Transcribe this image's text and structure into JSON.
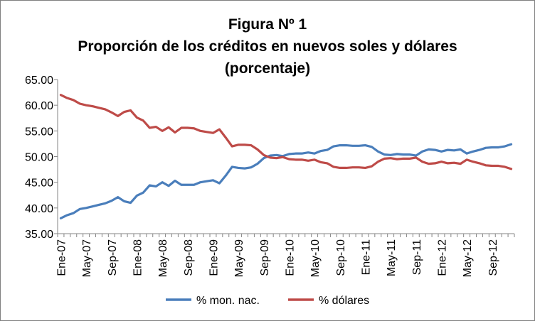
{
  "chart_data": {
    "type": "line",
    "title_lines": [
      "Figura Nº 1",
      "Proporción de los créditos en nuevos soles y dólares",
      "(porcentaje)"
    ],
    "xlabel": "",
    "ylabel": "",
    "ylim": [
      35,
      65
    ],
    "yticks": [
      "35.00",
      "40.00",
      "45.00",
      "50.00",
      "55.00",
      "60.00",
      "65.00"
    ],
    "grid": false,
    "legend_position": "bottom",
    "x_tick_labels": [
      "Ene-07",
      "May-07",
      "Sep-07",
      "Ene-08",
      "May-08",
      "Sep-08",
      "Ene-09",
      "May-09",
      "Sep-09",
      "Ene-10",
      "May-10",
      "Sep-10",
      "Ene-11",
      "May-11",
      "Sep-11",
      "Ene-12",
      "May-12",
      "Sep-12"
    ],
    "x_tick_every": 4,
    "series": [
      {
        "name": "% mon. nac.",
        "color": "#4a7ebb",
        "values": [
          38.0,
          38.6,
          39.0,
          39.8,
          40.0,
          40.3,
          40.6,
          40.9,
          41.4,
          42.1,
          41.3,
          41.0,
          42.4,
          43.0,
          44.4,
          44.2,
          45.0,
          44.3,
          45.3,
          44.5,
          44.5,
          44.5,
          45.0,
          45.2,
          45.4,
          44.8,
          46.3,
          48.0,
          47.8,
          47.7,
          47.9,
          48.6,
          49.7,
          50.2,
          50.3,
          50.1,
          50.5,
          50.6,
          50.6,
          50.8,
          50.6,
          51.1,
          51.3,
          52.0,
          52.2,
          52.2,
          52.1,
          52.1,
          52.2,
          51.9,
          51.0,
          50.4,
          50.3,
          50.5,
          50.4,
          50.4,
          50.2,
          51.0,
          51.4,
          51.3,
          51.0,
          51.3,
          51.2,
          51.4,
          50.6,
          51.0,
          51.3,
          51.7,
          51.8,
          51.8,
          52.0,
          52.4
        ]
      },
      {
        "name": "% dólares",
        "color": "#be4b48",
        "values": [
          62.0,
          61.4,
          61.0,
          60.3,
          60.0,
          59.8,
          59.5,
          59.2,
          58.6,
          57.9,
          58.7,
          59.0,
          57.6,
          57.0,
          55.6,
          55.8,
          55.0,
          55.7,
          54.7,
          55.6,
          55.6,
          55.5,
          55.0,
          54.8,
          54.6,
          55.3,
          53.7,
          52.0,
          52.3,
          52.3,
          52.2,
          51.4,
          50.3,
          49.8,
          49.7,
          49.9,
          49.5,
          49.4,
          49.4,
          49.2,
          49.4,
          48.9,
          48.7,
          48.0,
          47.8,
          47.8,
          47.9,
          47.9,
          47.8,
          48.1,
          49.0,
          49.6,
          49.7,
          49.5,
          49.6,
          49.6,
          49.8,
          49.0,
          48.6,
          48.7,
          49.0,
          48.7,
          48.8,
          48.6,
          49.4,
          49.0,
          48.7,
          48.3,
          48.2,
          48.2,
          48.0,
          47.6
        ]
      }
    ]
  }
}
